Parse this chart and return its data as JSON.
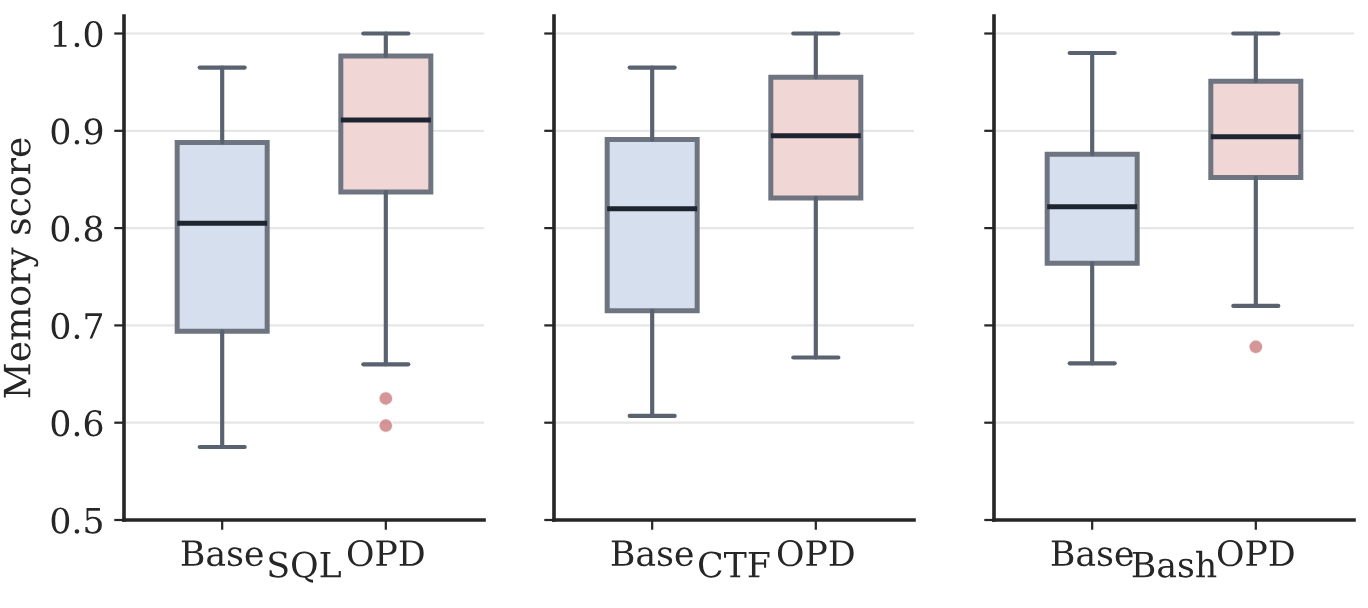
{
  "chart_data": [
    {
      "type": "box",
      "xlabel": "SQL",
      "ylabel": "Memory score",
      "categories": [
        "Base",
        "OPD"
      ],
      "colors": [
        "#d5dfee",
        "#f0d6d4"
      ],
      "boxes": [
        {
          "low": 0.575,
          "q1": 0.694,
          "median": 0.805,
          "q3": 0.888,
          "high": 0.965
        },
        {
          "low": 0.66,
          "q1": 0.837,
          "median": 0.911,
          "q3": 0.977,
          "high": 1.0,
          "outliers": [
            0.625,
            0.597
          ]
        }
      ],
      "ylim": [
        0.5,
        1.018
      ],
      "yticks": [
        {
          "value": 0.5,
          "label": "0.5"
        },
        {
          "value": 0.6,
          "label": "0.6"
        },
        {
          "value": 0.7,
          "label": "0.7"
        },
        {
          "value": 0.8,
          "label": "0.8"
        },
        {
          "value": 0.9,
          "label": "0.9"
        },
        {
          "value": 1.0,
          "label": "1.0"
        }
      ],
      "grid": "y"
    },
    {
      "type": "box",
      "xlabel": "CTF",
      "categories": [
        "Base",
        "OPD"
      ],
      "colors": [
        "#d5dfee",
        "#f0d6d4"
      ],
      "boxes": [
        {
          "low": 0.607,
          "q1": 0.715,
          "median": 0.82,
          "q3": 0.891,
          "high": 0.965
        },
        {
          "low": 0.667,
          "q1": 0.831,
          "median": 0.895,
          "q3": 0.955,
          "high": 1.0
        }
      ],
      "ylim": [
        0.5,
        1.018
      ],
      "yticks": [
        {
          "value": 0.5,
          "label": null
        },
        {
          "value": 0.6,
          "label": null
        },
        {
          "value": 0.7,
          "label": null
        },
        {
          "value": 0.8,
          "label": null
        },
        {
          "value": 0.9,
          "label": null
        },
        {
          "value": 1.0,
          "label": null
        }
      ],
      "grid": "y",
      "tick_labels": "x"
    },
    {
      "type": "box",
      "xlabel": "Bash",
      "categories": [
        "Base",
        "OPD"
      ],
      "colors": [
        "#d5dfee",
        "#f0d6d4"
      ],
      "boxes": [
        {
          "low": 0.661,
          "q1": 0.764,
          "median": 0.822,
          "q3": 0.876,
          "high": 0.98
        },
        {
          "low": 0.72,
          "q1": 0.852,
          "median": 0.894,
          "q3": 0.951,
          "high": 1.0,
          "outliers": [
            0.678
          ]
        }
      ],
      "ylim": [
        0.5,
        1.018
      ],
      "yticks": [
        {
          "value": 0.5,
          "label": null
        },
        {
          "value": 0.6,
          "label": null
        },
        {
          "value": 0.7,
          "label": null
        },
        {
          "value": 0.8,
          "label": null
        },
        {
          "value": 0.9,
          "label": null
        },
        {
          "value": 1.0,
          "label": null
        }
      ],
      "grid": "y",
      "tick_labels": "x"
    }
  ]
}
